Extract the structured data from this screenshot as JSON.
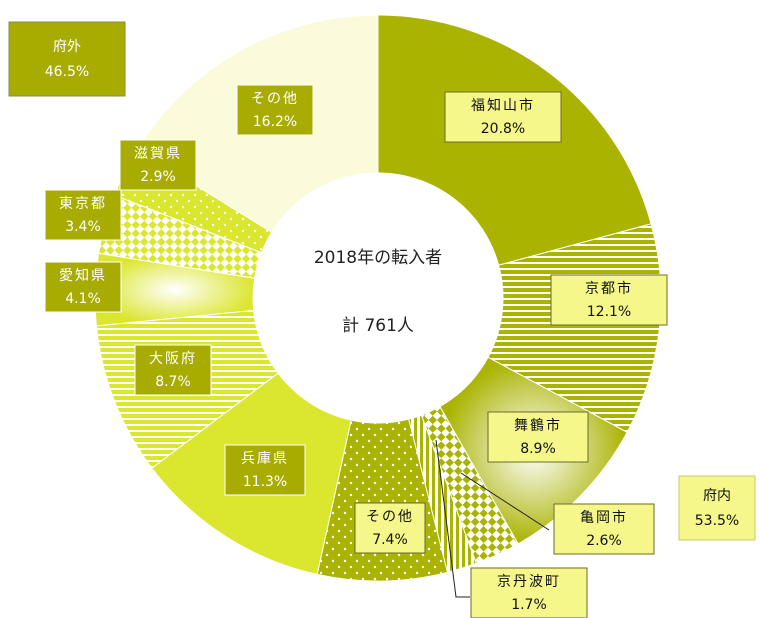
{
  "chart_data": {
    "type": "donut",
    "center_text": [
      "2018年の転入者",
      "計 761人"
    ],
    "categories": [
      "福知山市",
      "京都市",
      "舞鶴市",
      "亀岡市",
      "京丹波町",
      "その他",
      "兵庫県",
      "大阪府",
      "愛知県",
      "東京都",
      "滋賀県",
      "その他"
    ],
    "values": [
      20.8,
      12.1,
      8.9,
      2.6,
      1.7,
      7.4,
      11.3,
      8.7,
      4.1,
      3.4,
      2.9,
      16.2
    ],
    "value_labels": [
      "20.8%",
      "12.1%",
      "8.9%",
      "2.6%",
      "1.7%",
      "7.4%",
      "11.3%",
      "8.7%",
      "4.1%",
      "3.4%",
      "2.9%",
      "16.2%"
    ],
    "colors": [
      "#a9b300",
      "#a9b300",
      "#a9b300",
      "#a9b300",
      "#a9b300",
      "#a9b300",
      "#dbe62e",
      "#dbe62e",
      "#dbe62e",
      "#dbe62e",
      "#dbe62e",
      "#fbfbdc"
    ],
    "patterns": [
      "solid",
      "hstripes",
      "radial",
      "checker",
      "vstripes",
      "dots",
      "solid",
      "hstripes",
      "radial",
      "checker",
      "dots",
      "solid"
    ],
    "groups": [
      {
        "name": "府内",
        "value": 53.5,
        "value_label": "53.5%"
      },
      {
        "name": "府外",
        "value": 46.5,
        "value_label": "46.5%"
      }
    ]
  }
}
